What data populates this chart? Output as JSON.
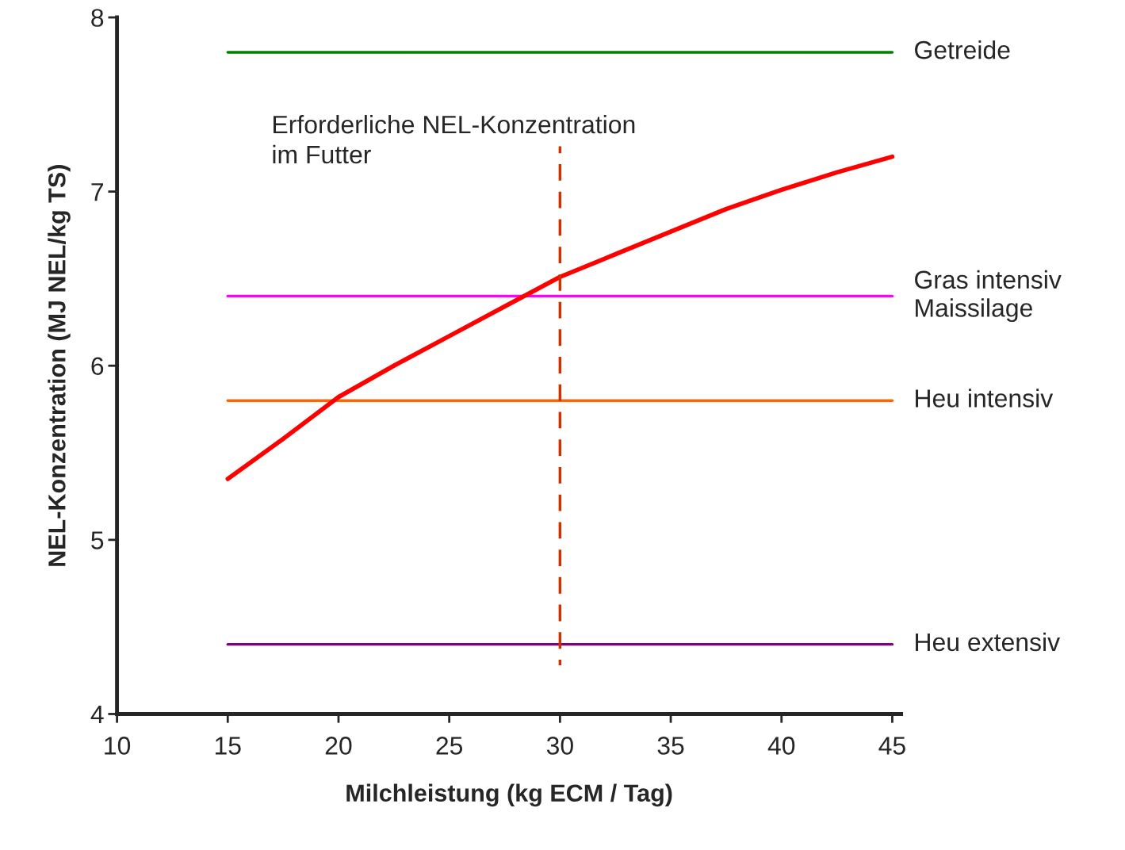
{
  "chart_data": {
    "type": "line",
    "xlabel": "Milchleistung (kg ECM / Tag)",
    "ylabel": "NEL-Konzentration (MJ NEL/kg TS)",
    "xlim": [
      10,
      45.4
    ],
    "ylim": [
      4,
      8
    ],
    "xticks": [
      10,
      15,
      20,
      25,
      30,
      35,
      40,
      45
    ],
    "yticks": [
      4,
      5,
      6,
      7,
      8
    ],
    "grid": false,
    "legend": false,
    "marker": "none",
    "annotations": [
      "Erforderliche NEL-Konzentration\nim Futter"
    ],
    "series": [
      {
        "name": "Getreide",
        "color": "#008000",
        "x": [
          15,
          45
        ],
        "values": [
          7.8,
          7.8
        ]
      },
      {
        "name": "Gras intensiv\nMaissilage",
        "color": "#ff00ff",
        "x": [
          15,
          45
        ],
        "values": [
          6.4,
          6.4
        ]
      },
      {
        "name": "Heu intensiv",
        "color": "#ff6600",
        "x": [
          15,
          45
        ],
        "values": [
          5.8,
          5.8
        ]
      },
      {
        "name": "Heu extensiv",
        "color": "#800080",
        "x": [
          15,
          45
        ],
        "values": [
          4.4,
          4.4
        ]
      },
      {
        "color": "#ff0000",
        "x": [
          15,
          17.5,
          20,
          22.5,
          25,
          27.5,
          30,
          32.5,
          35,
          37.5,
          40,
          42.5,
          45
        ],
        "values": [
          5.35,
          5.58,
          5.82,
          6.0,
          6.17,
          6.34,
          6.51,
          6.64,
          6.77,
          6.9,
          7.01,
          7.11,
          7.2
        ]
      },
      {
        "color": "#cc3300",
        "line_style": "dashed",
        "x": [
          30,
          30
        ],
        "values": [
          4.28,
          7.26
        ]
      }
    ]
  }
}
